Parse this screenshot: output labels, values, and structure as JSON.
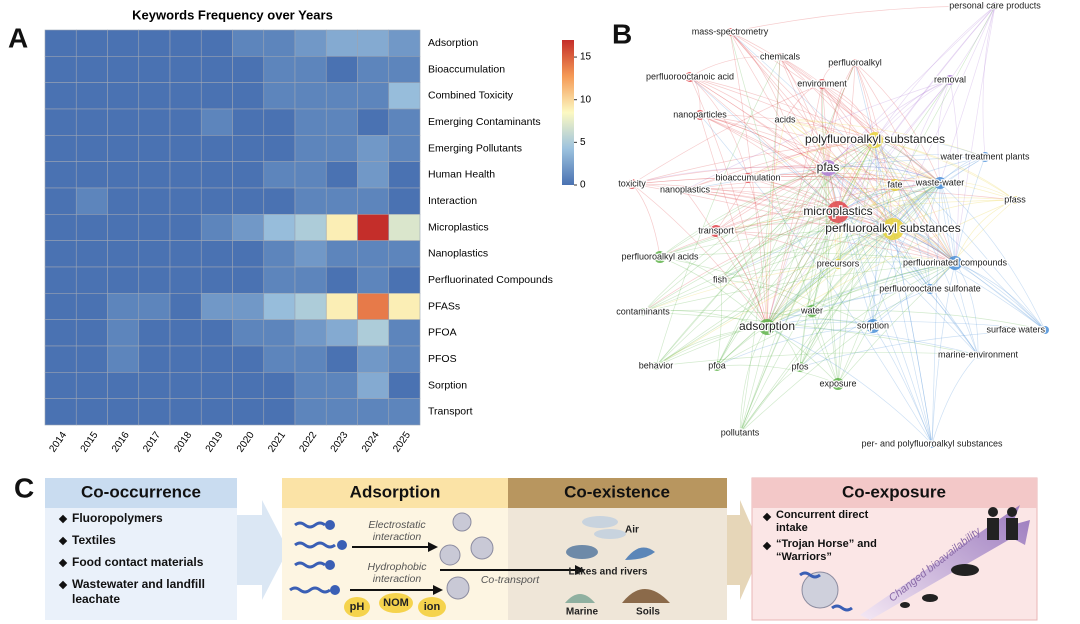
{
  "panel_labels": [
    "A",
    "B",
    "C"
  ],
  "chart_data": {
    "type": "heatmap",
    "title": "Keywords Frequency over Years",
    "categories": [
      "2014",
      "2015",
      "2016",
      "2017",
      "2018",
      "2019",
      "2020",
      "2021",
      "2022",
      "2023",
      "2024",
      "2025"
    ],
    "rows": [
      "Adsorption",
      "Bioaccumulation",
      "Combined Toxicity",
      "Emerging Contaminants",
      "Emerging Pollutants",
      "Human Health",
      "Interaction",
      "Microplastics",
      "Nanoplastics",
      "Perfluorinated Compounds",
      "PFASs",
      "PFOA",
      "PFOS",
      "Sorption",
      "Transport"
    ],
    "values": [
      [
        0,
        0,
        0,
        0,
        0,
        0,
        1,
        1,
        2,
        3,
        3,
        2
      ],
      [
        0,
        0,
        0,
        0,
        0,
        0,
        0,
        1,
        1,
        0,
        1,
        1
      ],
      [
        0,
        0,
        0,
        0,
        0,
        0,
        0,
        1,
        1,
        1,
        1,
        4
      ],
      [
        0,
        0,
        0,
        0,
        0,
        1,
        0,
        0,
        1,
        1,
        0,
        1
      ],
      [
        0,
        0,
        0,
        0,
        0,
        0,
        0,
        0,
        1,
        1,
        2,
        1
      ],
      [
        0,
        0,
        0,
        0,
        0,
        0,
        0,
        1,
        1,
        0,
        2,
        0
      ],
      [
        0,
        1,
        0,
        0,
        0,
        0,
        0,
        0,
        1,
        1,
        1,
        0
      ],
      [
        0,
        0,
        0,
        0,
        0,
        1,
        2,
        4,
        5,
        9,
        17,
        7
      ],
      [
        0,
        0,
        0,
        0,
        0,
        0,
        0,
        1,
        2,
        1,
        1,
        1
      ],
      [
        0,
        0,
        0,
        0,
        0,
        0,
        0,
        1,
        1,
        0,
        1,
        0
      ],
      [
        0,
        0,
        1,
        1,
        0,
        2,
        2,
        4,
        5,
        9,
        14,
        9
      ],
      [
        0,
        0,
        1,
        0,
        0,
        0,
        1,
        1,
        2,
        3,
        5,
        1
      ],
      [
        0,
        0,
        1,
        0,
        0,
        0,
        0,
        1,
        1,
        0,
        2,
        1
      ],
      [
        0,
        0,
        0,
        0,
        0,
        0,
        0,
        0,
        1,
        1,
        3,
        0
      ],
      [
        0,
        0,
        0,
        0,
        0,
        0,
        0,
        0,
        1,
        1,
        1,
        1
      ]
    ],
    "colormap": [
      "#4a72b2",
      "#9cc2de",
      "#fcf9c2",
      "#f59a56",
      "#c42e2a"
    ],
    "zlim": [
      0,
      17
    ],
    "zticks": [
      0,
      5,
      10,
      15
    ]
  },
  "network": {
    "nodes": [
      {
        "label": "mass-spectrometry",
        "color": "#e0474c"
      },
      {
        "label": "chemicals",
        "color": "#e0474c"
      },
      {
        "label": "perfluoroalkyl",
        "color": "#e0474c"
      },
      {
        "label": "personal care products",
        "color": "#b07fd8"
      },
      {
        "label": "perfluorooctanoic acid",
        "color": "#e0474c"
      },
      {
        "label": "environment",
        "color": "#e0474c"
      },
      {
        "label": "removal",
        "color": "#b07fd8"
      },
      {
        "label": "nanoparticles",
        "color": "#e0474c"
      },
      {
        "label": "acids",
        "color": "#e8d23a"
      },
      {
        "label": "polyfluoroalkyl substances",
        "color": "#e8d23a"
      },
      {
        "label": "pfas",
        "color": "#b07fd8"
      },
      {
        "label": "water treatment plants",
        "color": "#4a8fd8"
      },
      {
        "label": "bioaccumulation",
        "color": "#e0474c"
      },
      {
        "label": "toxicity",
        "color": "#e0474c"
      },
      {
        "label": "nanoplastics",
        "color": "#e0474c"
      },
      {
        "label": "fate",
        "color": "#e8d23a"
      },
      {
        "label": "waste-water",
        "color": "#4a8fd8"
      },
      {
        "label": "pfass",
        "color": "#e8d23a"
      },
      {
        "label": "microplastics",
        "color": "#e0474c"
      },
      {
        "label": "perfluoroalkyl substances",
        "color": "#e8d23a"
      },
      {
        "label": "transport",
        "color": "#e0474c"
      },
      {
        "label": "perfluoroalkyl acids",
        "color": "#5fb34a"
      },
      {
        "label": "perfluorinated compounds",
        "color": "#4a8fd8"
      },
      {
        "label": "precursors",
        "color": "#e8d23a"
      },
      {
        "label": "fish",
        "color": "#5fb34a"
      },
      {
        "label": "perfluorooctane sulfonate",
        "color": "#4a8fd8"
      },
      {
        "label": "contaminants",
        "color": "#5fb34a"
      },
      {
        "label": "water",
        "color": "#5fb34a"
      },
      {
        "label": "adsorption",
        "color": "#5fb34a"
      },
      {
        "label": "sorption",
        "color": "#4a8fd8"
      },
      {
        "label": "surface waters",
        "color": "#4a8fd8"
      },
      {
        "label": "behavior",
        "color": "#5fb34a"
      },
      {
        "label": "pfoa",
        "color": "#5fb34a"
      },
      {
        "label": "pfos",
        "color": "#5fb34a"
      },
      {
        "label": "marine-environment",
        "color": "#4a8fd8"
      },
      {
        "label": "exposure",
        "color": "#5fb34a"
      },
      {
        "label": "pollutants",
        "color": "#5fb34a"
      },
      {
        "label": "per- and polyfluoroalkyl substances",
        "color": "#4a8fd8"
      }
    ]
  },
  "diagram": {
    "co_occurrence": {
      "title": "Co-occurrence",
      "items": [
        "Fluoropolymers",
        "Textiles",
        "Food contact materials",
        "Wastewater and landfill leachate"
      ]
    },
    "adsorption": {
      "title": "Adsorption",
      "labels": [
        "Electrostatic interaction",
        "Hydrophobic interaction"
      ],
      "factors": [
        "pH",
        "NOM",
        "ion"
      ]
    },
    "co_existence": {
      "title": "Co-existence",
      "transport": "Co-transport",
      "media": [
        "Air",
        "Lakes and rivers",
        "Marine",
        "Soils"
      ]
    },
    "co_exposure": {
      "title": "Co-exposure",
      "items": [
        "Concurrent direct intake",
        "“Trojan Horse” and “Warriors”"
      ],
      "arrow_label": "Changed bioavailability"
    }
  }
}
